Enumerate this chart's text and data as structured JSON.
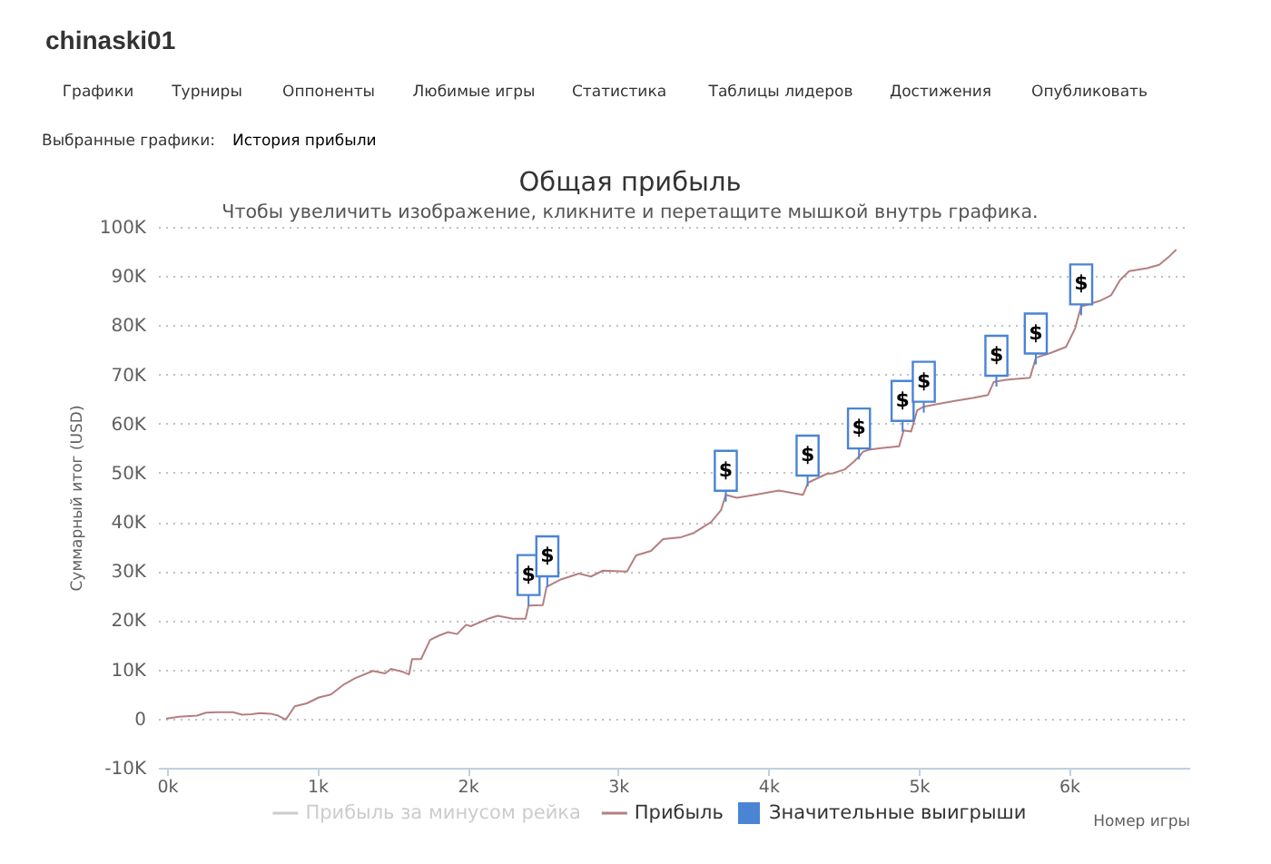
{
  "chart_data": {
    "type": "line",
    "title": "Общая прибыль",
    "subtitle": "Чтобы увеличить изображение, кликните и перетащите мышкой внутрь графика.",
    "xlabel": "Номер игры",
    "ylabel": "Суммарный итог (USD)",
    "xlim": [
      -60,
      6800
    ],
    "xticks": [
      {
        "value": 0,
        "label": "0k"
      },
      {
        "value": 1000,
        "label": "1k"
      },
      {
        "value": 2000,
        "label": "2k"
      },
      {
        "value": 3000,
        "label": "3k"
      },
      {
        "value": 4000,
        "label": "4k"
      },
      {
        "value": 5000,
        "label": "5k"
      },
      {
        "value": 6000,
        "label": "6k"
      }
    ],
    "ylim": [
      -10000,
      100000
    ],
    "yticks": [
      {
        "value": -10000,
        "label": "-10K"
      },
      0,
      {
        "value": 10000,
        "label": "10K"
      },
      {
        "value": 20000,
        "label": "20K"
      },
      {
        "value": 30000,
        "label": "30K"
      },
      {
        "value": 40000,
        "label": "40K"
      },
      {
        "value": 50000,
        "label": "50K"
      },
      {
        "value": 60000,
        "label": "60K"
      },
      {
        "value": 70000,
        "label": "70K"
      },
      {
        "value": 80000,
        "label": "80K"
      },
      {
        "value": 90000,
        "label": "90K"
      },
      {
        "value": 100000,
        "label": "100K"
      }
    ],
    "grid": "y",
    "legend": "bottom",
    "series": [
      {
        "name": "Прибыль за минусом рейка",
        "color": "#cccccc"
      },
      {
        "name": "Прибыль",
        "color": "#b57f80",
        "x": [
          0,
          80,
          200,
          260,
          330,
          440,
          500,
          560,
          620,
          690,
          740,
          790,
          850,
          930,
          1010,
          1090,
          1170,
          1250,
          1370,
          1450,
          1490,
          1570,
          1610,
          1630,
          1690,
          1750,
          1810,
          1870,
          1930,
          1990,
          2020,
          2135,
          2200,
          2300,
          2385,
          2405,
          2500,
          2525,
          2620,
          2740,
          2820,
          2900,
          3060,
          3120,
          3220,
          3300,
          3420,
          3500,
          3620,
          3685,
          3717,
          3790,
          3910,
          4070,
          4230,
          4265,
          4390,
          4430,
          4510,
          4570,
          4610,
          4630,
          4670,
          4750,
          4870,
          4900,
          4950,
          4990,
          5030,
          5115,
          5240,
          5360,
          5460,
          5500,
          5580,
          5740,
          5780,
          5880,
          5980,
          6040,
          6080,
          6200,
          6280,
          6340,
          6400,
          6520,
          6600,
          6660,
          6710
        ],
        "values": [
          0,
          400,
          600,
          1200,
          1300,
          1300,
          800,
          900,
          1100,
          1000,
          600,
          -200,
          2500,
          3100,
          4300,
          4900,
          6800,
          8200,
          9700,
          9200,
          10100,
          9500,
          9000,
          12100,
          12100,
          16000,
          16900,
          17600,
          17200,
          19100,
          18800,
          20300,
          20900,
          20300,
          20300,
          23000,
          23100,
          26800,
          28300,
          29500,
          28900,
          30100,
          29900,
          33200,
          34100,
          36500,
          36900,
          37700,
          40000,
          42400,
          45500,
          44900,
          45500,
          46400,
          45500,
          48000,
          49800,
          49900,
          50700,
          52300,
          53500,
          54300,
          54700,
          55000,
          55400,
          58600,
          58400,
          62700,
          63400,
          63900,
          64600,
          65200,
          65800,
          68500,
          68900,
          69300,
          73400,
          74400,
          75600,
          79300,
          83800,
          84900,
          86100,
          89200,
          91000,
          91600,
          92300,
          93800,
          95300
        ]
      },
      {
        "name": "Значительные выигрыши",
        "type": "scatter",
        "marker": "square",
        "color": "#4a84d4",
        "x": [
          2405,
          2530,
          3717,
          4261,
          4603,
          4893,
          5034,
          5517,
          5779,
          6081
        ],
        "values": [
          29200,
          33000,
          50400,
          53500,
          59000,
          64600,
          68500,
          73800,
          78300,
          88300
        ]
      }
    ],
    "annotations": [
      "chinaski01",
      "Графики",
      "Турниры",
      "Оппоненты",
      "Любимые игры",
      "Статистика",
      "Таблицы лидеров",
      "Достижения",
      "Опубликовать",
      "Выбранные графики:",
      "История прибыли",
      {
        "text": "$",
        "x": 2405,
        "y": 29200
      },
      {
        "text": "$",
        "x": 2530,
        "y": 33000
      },
      {
        "text": "$",
        "x": 3717,
        "y": 50400
      },
      {
        "text": "$",
        "x": 4261,
        "y": 53500
      },
      {
        "text": "$",
        "x": 4603,
        "y": 59000
      },
      {
        "text": "$",
        "x": 4893,
        "y": 64600
      },
      {
        "text": "$",
        "x": 5034,
        "y": 68500
      },
      {
        "text": "$",
        "x": 5517,
        "y": 73800
      },
      {
        "text": "$",
        "x": 5779,
        "y": 78300
      },
      {
        "text": "$",
        "x": 6081,
        "y": 88300
      }
    ]
  }
}
